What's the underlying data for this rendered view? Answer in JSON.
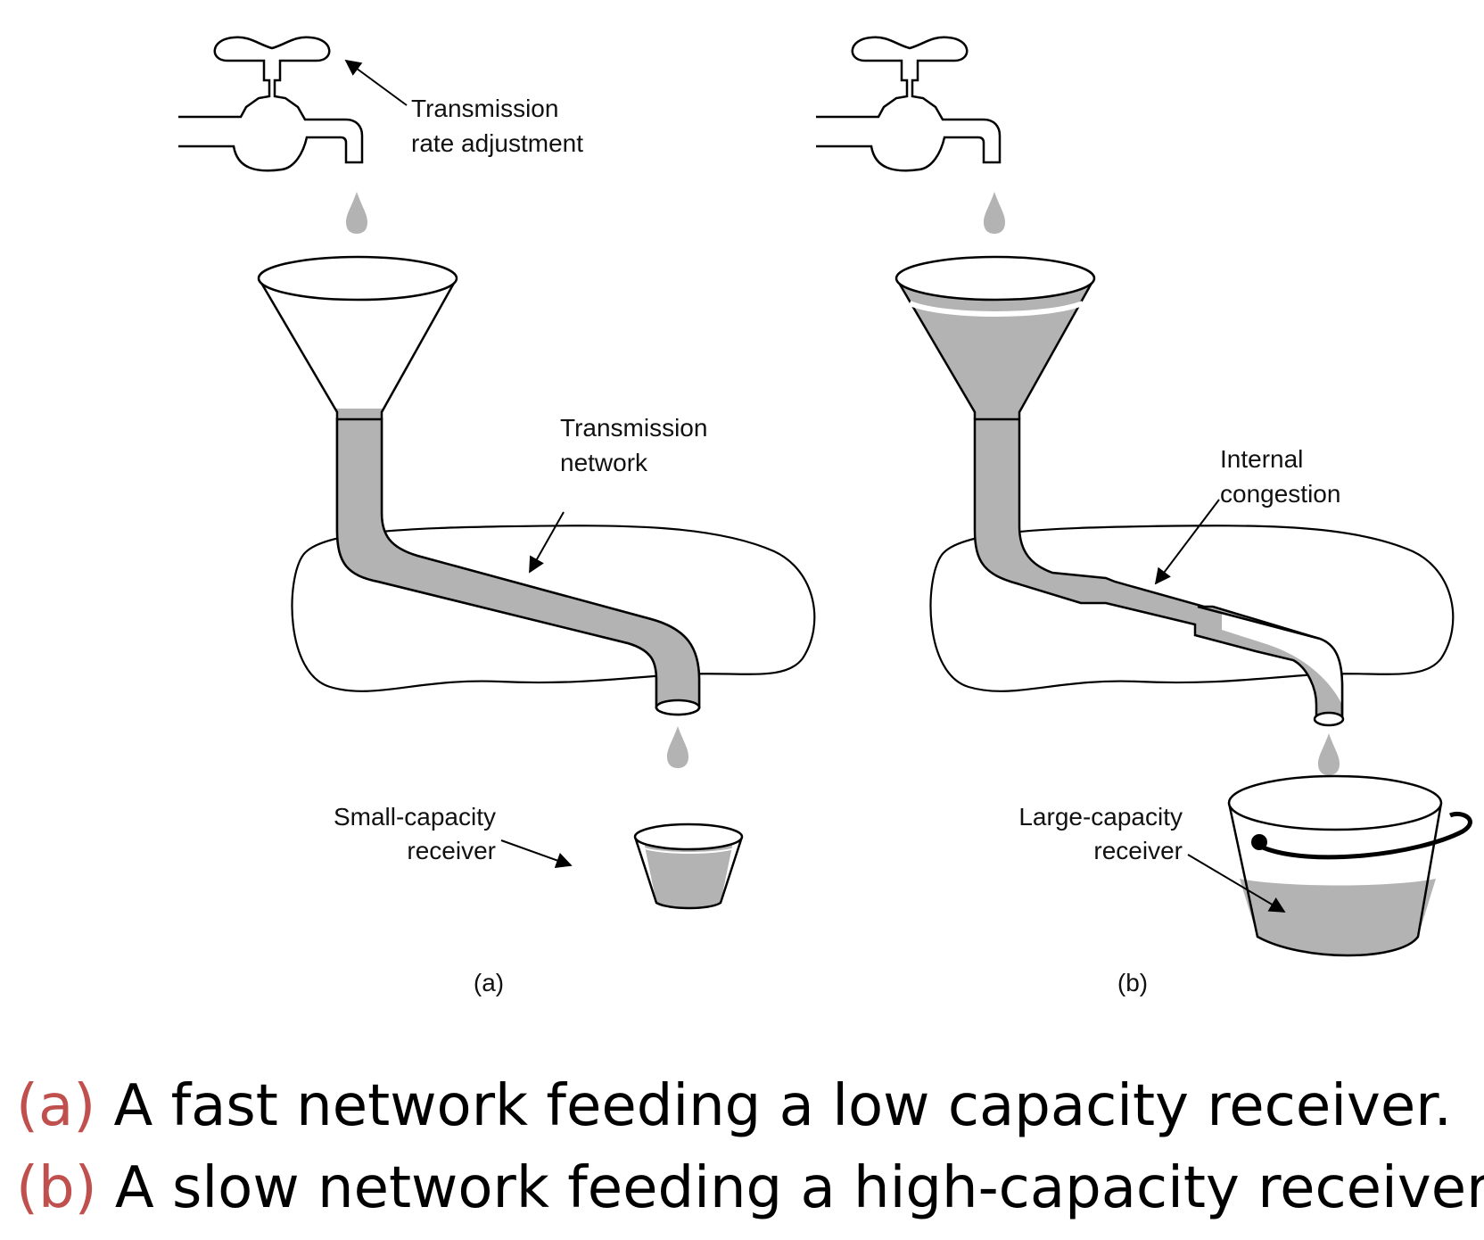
{
  "labels": {
    "rate_adjustment_l1": "Transmission",
    "rate_adjustment_l2": "rate adjustment",
    "network_l1": "Transmission",
    "network_l2": "network",
    "congestion_l1": "Internal",
    "congestion_l2": "congestion",
    "small_receiver_l1": "Small-capacity",
    "small_receiver_l2": "receiver",
    "large_receiver_l1": "Large-capacity",
    "large_receiver_l2": "receiver",
    "panel_a": "(a)",
    "panel_b": "(b)"
  },
  "captions": {
    "a_tag": "(a)",
    "a_text": " A fast network feeding a low capacity receiver.",
    "b_tag": "(b)",
    "b_text": " A slow network feeding a high-capacity receiver."
  },
  "colors": {
    "water": "#b3b3b3",
    "caption_tag": "#c0504d"
  }
}
